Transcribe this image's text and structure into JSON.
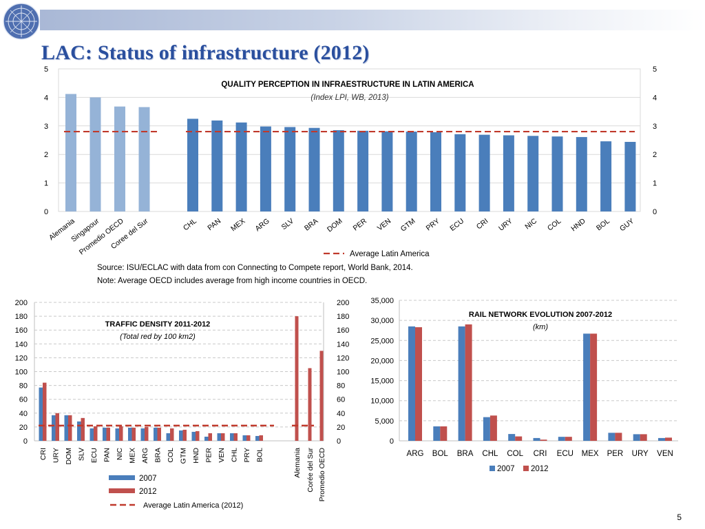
{
  "header": {
    "title": "LAC: Status of infrastructure (2012)",
    "page_number": "5",
    "logo_label": "United Nations emblem"
  },
  "colors": {
    "accent_blue": "#4a7ebb",
    "light_blue": "#95b3d7",
    "red": "#c0504d",
    "avg_line": "#c0392b",
    "title": "#2a4f9e"
  },
  "chart_data": [
    {
      "type": "bar",
      "title": "QUALITY PERCEPTION IN INFRAESTRUCTURE IN LATIN AMERICA",
      "subtitle": "(Index LPI, WB, 2013)",
      "benchmark_categories": [
        "Alemania",
        "Singapour",
        "Promedio OECD",
        "Coree del Sur"
      ],
      "benchmark_values": [
        4.12,
        4.0,
        3.68,
        3.66
      ],
      "categories": [
        "CHL",
        "PAN",
        "MEX",
        "ARG",
        "SLV",
        "BRA",
        "DOM",
        "PER",
        "VEN",
        "GTM",
        "PRY",
        "ECU",
        "CRI",
        "URY",
        "NIC",
        "COL",
        "HND",
        "BOL",
        "GUY"
      ],
      "values": [
        3.25,
        3.19,
        3.12,
        2.98,
        2.96,
        2.93,
        2.85,
        2.83,
        2.81,
        2.8,
        2.78,
        2.71,
        2.69,
        2.67,
        2.65,
        2.63,
        2.61,
        2.46,
        2.44
      ],
      "average_latin_america": 2.8,
      "legend_avg": "Average Latin America",
      "ylim": [
        0,
        5
      ],
      "yticks": [
        "0",
        "1",
        "2",
        "3",
        "4",
        "5"
      ],
      "source": "Source: ISU/ECLAC with data from con Connecting to Compete report, World Bank, 2014.",
      "note": "Note: Average OECD includes average from high income countries in OECD."
    },
    {
      "type": "bar",
      "title": "TRAFFIC DENSITY 2011-2012",
      "subtitle": "(Total red by 100 km2)",
      "categories": [
        "CRI",
        "URY",
        "DOM",
        "SLV",
        "ECU",
        "PAN",
        "NIC",
        "MEX",
        "ARG",
        "BRA",
        "COL",
        "GTM",
        "HND",
        "PER",
        "VEN",
        "CHL",
        "PRY",
        "BOL"
      ],
      "series": [
        {
          "name": "2007",
          "values": [
            77,
            37,
            37,
            28,
            18,
            19,
            18,
            19,
            18,
            19,
            11,
            15,
            13,
            6,
            11,
            11,
            8,
            7
          ]
        },
        {
          "name": "2012",
          "values": [
            84,
            40,
            37,
            33,
            21,
            19,
            21,
            19,
            20,
            19,
            18,
            16,
            14,
            11,
            11,
            11,
            8,
            8
          ]
        }
      ],
      "benchmark_categories": [
        "Alemania",
        "Corée del Sur",
        "Promedio OECD"
      ],
      "benchmark_values": [
        180,
        105,
        130
      ],
      "average_latin_america_2012": 22,
      "legend_2007": "2007",
      "legend_2012": "2012",
      "legend_avg": "Average Latin America (2012)",
      "ylim": [
        0,
        200
      ],
      "yticks": [
        "0",
        "20",
        "40",
        "60",
        "80",
        "100",
        "120",
        "140",
        "160",
        "180",
        "200"
      ]
    },
    {
      "type": "bar",
      "title": "RAIL NETWORK EVOLUTION 2007-2012",
      "subtitle": "(km)",
      "categories": [
        "ARG",
        "BOL",
        "BRA",
        "CHL",
        "COL",
        "CRI",
        "ECU",
        "MEX",
        "PER",
        "URY",
        "VEN"
      ],
      "series": [
        {
          "name": "2007",
          "values": [
            28500,
            3600,
            28500,
            5900,
            1700,
            700,
            1000,
            26700,
            2000,
            1650,
            700
          ]
        },
        {
          "name": "2012",
          "values": [
            28300,
            3600,
            29000,
            6300,
            1100,
            300,
            1000,
            26700,
            2000,
            1650,
            800
          ]
        }
      ],
      "ylim": [
        0,
        35000
      ],
      "yticks": [
        "0",
        "5,000",
        "10,000",
        "15,000",
        "20,000",
        "25,000",
        "30,000",
        "35,000"
      ],
      "legend_2007": "2007",
      "legend_2012": "2012"
    }
  ]
}
